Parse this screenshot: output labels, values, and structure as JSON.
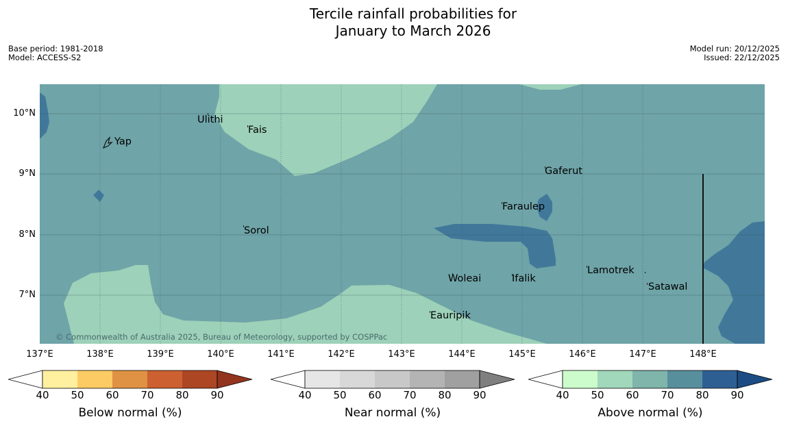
{
  "title_line1": "Tercile rainfall probabilities for",
  "title_line2": "January to March 2026",
  "meta": {
    "base_period": "Base period: 1981-2018",
    "model": "Model: ACCESS-S2",
    "model_run": "Model run: 20/12/2025",
    "issued": "Issued: 22/12/2025"
  },
  "copyright": "© Commonwealth of Australia 2025, Bureau of Meteorology, supported by COSPPac",
  "lat_labels": [
    "10°N",
    "9°N",
    "8°N",
    "7°N"
  ],
  "lon_labels": [
    "137°E",
    "138°E",
    "139°E",
    "140°E",
    "141°E",
    "142°E",
    "143°E",
    "144°E",
    "145°E",
    "146°E",
    "147°E",
    "148°E"
  ],
  "places": {
    "yap": "Yap",
    "ulithi": "Ulithi",
    "fais": "Fais",
    "gaferut": "Gaferut",
    "faraulep": "Faraulep",
    "sorol": "Sorol",
    "lamotrek": "Lamotrek",
    "woleai": "Woleai",
    "ifalik": "Ifalik",
    "satawal": "Satawal",
    "eauripik": "Eauripik"
  },
  "colorbars": {
    "below": {
      "label": "Below normal (%)",
      "ticks": [
        "40",
        "50",
        "60",
        "70",
        "80",
        "90"
      ],
      "colors": [
        "#fff0a0",
        "#fdcb63",
        "#e09244",
        "#cc6030",
        "#ad4623",
        "#93341f"
      ]
    },
    "near": {
      "label": "Near normal (%)",
      "ticks": [
        "40",
        "50",
        "60",
        "70",
        "80",
        "90"
      ],
      "colors": [
        "#e6e6e6",
        "#d8d8d8",
        "#c8c8c8",
        "#b4b4b4",
        "#a0a0a0",
        "#7f7f7f"
      ]
    },
    "above": {
      "label": "Above normal (%)",
      "ticks": [
        "40",
        "50",
        "60",
        "70",
        "80",
        "90"
      ],
      "colors": [
        "#ccfccc",
        "#a1d7bb",
        "#7fb5ab",
        "#588f9c",
        "#2e5f93",
        "#1c4c83"
      ]
    }
  },
  "map_colors": {
    "above_40_50": "#9dd1b9",
    "above_50_60": "#6fa4a8",
    "above_60_70": "#41789a"
  }
}
